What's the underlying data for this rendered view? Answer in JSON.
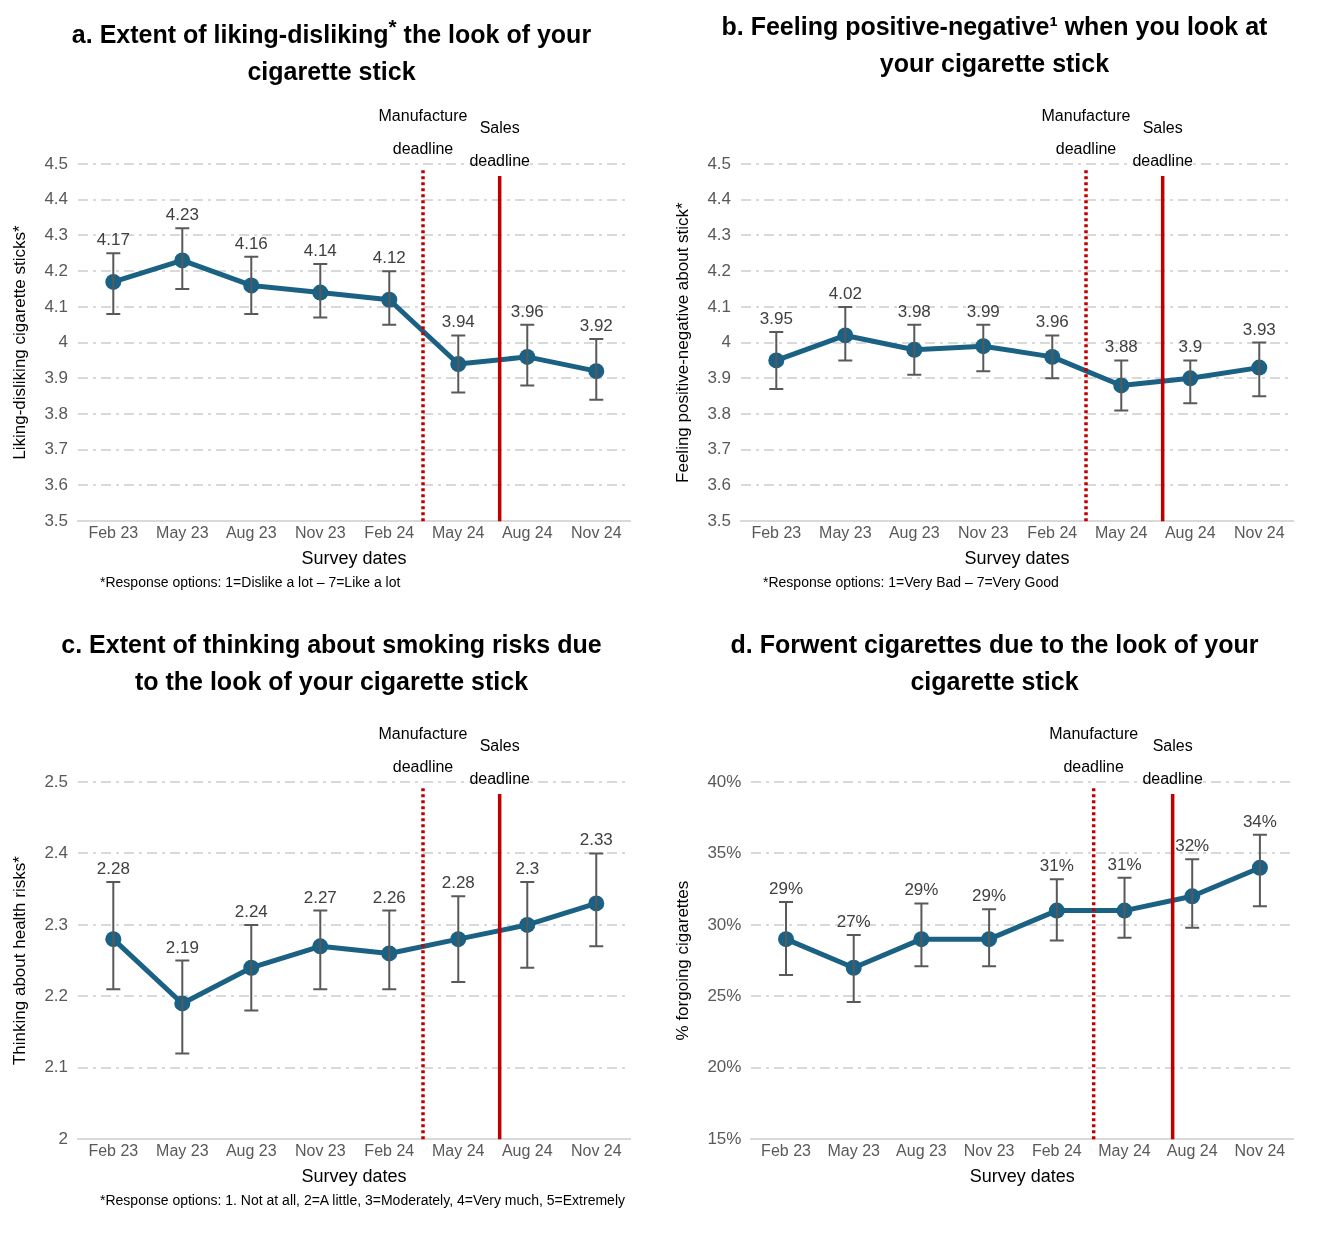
{
  "chart_data": [
    {
      "type": "line",
      "title": "a.  Extent of liking-disliking$^{*}$ the look of your cigarette stick",
      "xlabel": "Survey dates",
      "ylabel": "Liking-disliking cigarette sticks*",
      "annotations": [
        "*Response options:  1=Dislike a lot – 7=Like a lot"
      ],
      "x": [
        "2023-02",
        "2023-05",
        "2023-08",
        "2023-11",
        "2024-02",
        "2024-05",
        "2024-08",
        "2024-11"
      ],
      "xlim": [
        "2022-12-15",
        "2024-12-15"
      ],
      "xticks": [
        {
          "value": "2023-02",
          "label": "Feb 23"
        },
        {
          "value": "2023-05",
          "label": "May 23"
        },
        {
          "value": "2023-08",
          "label": "Aug 23"
        },
        {
          "value": "2023-11",
          "label": "Nov 23"
        },
        {
          "value": "2024-02",
          "label": "Feb 24"
        },
        {
          "value": "2024-05",
          "label": "May 24"
        },
        {
          "value": "2024-08",
          "label": "Aug 24"
        },
        {
          "value": "2024-11",
          "label": "Nov 24"
        }
      ],
      "series": [
        {
          "color": "#1b6184",
          "values": [
            4.17,
            4.23,
            4.16,
            4.14,
            4.12,
            3.94,
            3.96,
            3.92
          ],
          "errors": [
            [
              4.08,
              4.25
            ],
            [
              4.15,
              4.32
            ],
            [
              4.08,
              4.24
            ],
            [
              4.07,
              4.22
            ],
            [
              4.05,
              4.2
            ],
            [
              3.86,
              4.02
            ],
            [
              3.88,
              4.05
            ],
            [
              3.84,
              4.01
            ]
          ]
        }
      ],
      "ylim": [
        3.5,
        4.5
      ],
      "yticks": [
        3.5,
        3.6,
        3.7,
        3.8,
        3.9,
        4,
        4.1,
        4.2,
        4.3,
        4.4,
        4.5
      ],
      "ref_lines": [
        {
          "axis": "x",
          "value": "2024-03-15",
          "label": "Manufacture deadline",
          "color": "#c00000",
          "line_style": "dotted"
        },
        {
          "axis": "x",
          "value": "2024-06-25",
          "label": "Sales deadline",
          "color": "#c00000",
          "line_style": "solid"
        }
      ],
      "data_labels": true,
      "grid": "y",
      "legend": false,
      "marker": "circle",
      "line_style": "solid"
    },
    {
      "type": "line",
      "title": "b.  Feeling positive-negative¹ when you look at your cigarette stick",
      "xlabel": "Survey dates",
      "ylabel": "Feeling positive-negative about stick*",
      "annotations": [
        "*Response options: 1=Very Bad – 7=Very Good"
      ],
      "x": [
        "2023-02",
        "2023-05",
        "2023-08",
        "2023-11",
        "2024-02",
        "2024-05",
        "2024-08",
        "2024-11"
      ],
      "xlim": [
        "2022-12-15",
        "2024-12-15"
      ],
      "xticks": [
        {
          "value": "2023-02",
          "label": "Feb 23"
        },
        {
          "value": "2023-05",
          "label": "May 23"
        },
        {
          "value": "2023-08",
          "label": "Aug 23"
        },
        {
          "value": "2023-11",
          "label": "Nov 23"
        },
        {
          "value": "2024-02",
          "label": "Feb 24"
        },
        {
          "value": "2024-05",
          "label": "May 24"
        },
        {
          "value": "2024-08",
          "label": "Aug 24"
        },
        {
          "value": "2024-11",
          "label": "Nov 24"
        }
      ],
      "series": [
        {
          "color": "#1b6184",
          "values": [
            3.95,
            4.02,
            3.98,
            3.99,
            3.96,
            3.88,
            3.9,
            3.93
          ],
          "errors": [
            [
              3.87,
              4.03
            ],
            [
              3.95,
              4.1
            ],
            [
              3.91,
              4.05
            ],
            [
              3.92,
              4.05
            ],
            [
              3.9,
              4.02
            ],
            [
              3.81,
              3.95
            ],
            [
              3.83,
              3.95
            ],
            [
              3.85,
              4
            ]
          ]
        }
      ],
      "ylim": [
        3.5,
        4.5
      ],
      "yticks": [
        3.5,
        3.6,
        3.7,
        3.8,
        3.9,
        4,
        4.1,
        4.2,
        4.3,
        4.4,
        4.5
      ],
      "ref_lines": [
        {
          "axis": "x",
          "value": "2024-03-15",
          "label": "Manufacture deadline",
          "color": "#c00000",
          "line_style": "dotted"
        },
        {
          "axis": "x",
          "value": "2024-06-25",
          "label": "Sales deadline",
          "color": "#c00000",
          "line_style": "solid"
        }
      ],
      "data_labels": true,
      "grid": "y",
      "legend": false,
      "marker": "circle",
      "line_style": "solid"
    },
    {
      "type": "line",
      "title": "c.  Extent of thinking about smoking risks due to the look of your cigarette stick",
      "xlabel": "Survey dates",
      "ylabel": "Thinking about health risks*",
      "annotations": [
        "*Response options:  1. Not at all, 2=A little, 3=Moderately, 4=Very much, 5=Extremely"
      ],
      "x": [
        "2023-02",
        "2023-05",
        "2023-08",
        "2023-11",
        "2024-02",
        "2024-05",
        "2024-08",
        "2024-11"
      ],
      "xlim": [
        "2022-12-15",
        "2024-12-15"
      ],
      "xticks": [
        {
          "value": "2023-02",
          "label": "Feb 23"
        },
        {
          "value": "2023-05",
          "label": "May 23"
        },
        {
          "value": "2023-08",
          "label": "Aug 23"
        },
        {
          "value": "2023-11",
          "label": "Nov 23"
        },
        {
          "value": "2024-02",
          "label": "Feb 24"
        },
        {
          "value": "2024-05",
          "label": "May 24"
        },
        {
          "value": "2024-08",
          "label": "Aug 24"
        },
        {
          "value": "2024-11",
          "label": "Nov 24"
        }
      ],
      "series": [
        {
          "color": "#1b6184",
          "values": [
            2.28,
            2.19,
            2.24,
            2.27,
            2.26,
            2.28,
            2.3,
            2.33
          ],
          "errors": [
            [
              2.21,
              2.36
            ],
            [
              2.12,
              2.25
            ],
            [
              2.18,
              2.3
            ],
            [
              2.21,
              2.32
            ],
            [
              2.21,
              2.32
            ],
            [
              2.22,
              2.34
            ],
            [
              2.24,
              2.36
            ],
            [
              2.27,
              2.4
            ]
          ]
        }
      ],
      "ylim": [
        2,
        2.5
      ],
      "yticks": [
        2,
        2.1,
        2.2,
        2.3,
        2.4,
        2.5
      ],
      "ref_lines": [
        {
          "axis": "x",
          "value": "2024-03-15",
          "label": "Manufacture deadline",
          "color": "#c00000",
          "line_style": "dotted"
        },
        {
          "axis": "x",
          "value": "2024-06-25",
          "label": "Sales deadline",
          "color": "#c00000",
          "line_style": "solid"
        }
      ],
      "data_labels": true,
      "grid": "y",
      "legend": false,
      "marker": "circle",
      "line_style": "solid"
    },
    {
      "type": "line",
      "title": "d.  Forwent cigarettes due to the look of your cigarette stick",
      "xlabel": "Survey dates",
      "ylabel": "% forgoing cigarettes",
      "x": [
        "2023-02",
        "2023-05",
        "2023-08",
        "2023-11",
        "2024-02",
        "2024-05",
        "2024-08",
        "2024-11"
      ],
      "xlim": [
        "2022-12-15",
        "2024-12-15"
      ],
      "xticks": [
        {
          "value": "2023-02",
          "label": "Feb 23"
        },
        {
          "value": "2023-05",
          "label": "May 23"
        },
        {
          "value": "2023-08",
          "label": "Aug 23"
        },
        {
          "value": "2023-11",
          "label": "Nov 23"
        },
        {
          "value": "2024-02",
          "label": "Feb 24"
        },
        {
          "value": "2024-05",
          "label": "May 24"
        },
        {
          "value": "2024-08",
          "label": "Aug 24"
        },
        {
          "value": "2024-11",
          "label": "Nov 24"
        }
      ],
      "series": [
        {
          "color": "#1b6184",
          "values": [
            29,
            27,
            29,
            29,
            31,
            31,
            32,
            34
          ],
          "value_labels": [
            "29%",
            "27%",
            "29%",
            "29%",
            "31%",
            "31%",
            "32%",
            "34%"
          ],
          "errors": [
            [
              26.5,
              31.6
            ],
            [
              24.6,
              29.3
            ],
            [
              27.1,
              31.5
            ],
            [
              27.1,
              31.1
            ],
            [
              28.9,
              33.2
            ],
            [
              29.1,
              33.3
            ],
            [
              29.8,
              34.6
            ],
            [
              31.3,
              36.3
            ]
          ]
        }
      ],
      "ylim": [
        15,
        40
      ],
      "yticks": [
        {
          "value": 15,
          "label": "15%"
        },
        {
          "value": 20,
          "label": "20%"
        },
        {
          "value": 25,
          "label": "25%"
        },
        {
          "value": 30,
          "label": "30%"
        },
        {
          "value": 35,
          "label": "35%"
        },
        {
          "value": 40,
          "label": "40%"
        }
      ],
      "ref_lines": [
        {
          "axis": "x",
          "value": "2024-03-20",
          "label": "Manufacture deadline",
          "color": "#c00000",
          "line_style": "dotted"
        },
        {
          "axis": "x",
          "value": "2024-07-05",
          "label": "Sales deadline",
          "color": "#c00000",
          "line_style": "solid"
        }
      ],
      "grid": "y",
      "legend": false,
      "marker": "circle",
      "line_style": "solid"
    }
  ]
}
